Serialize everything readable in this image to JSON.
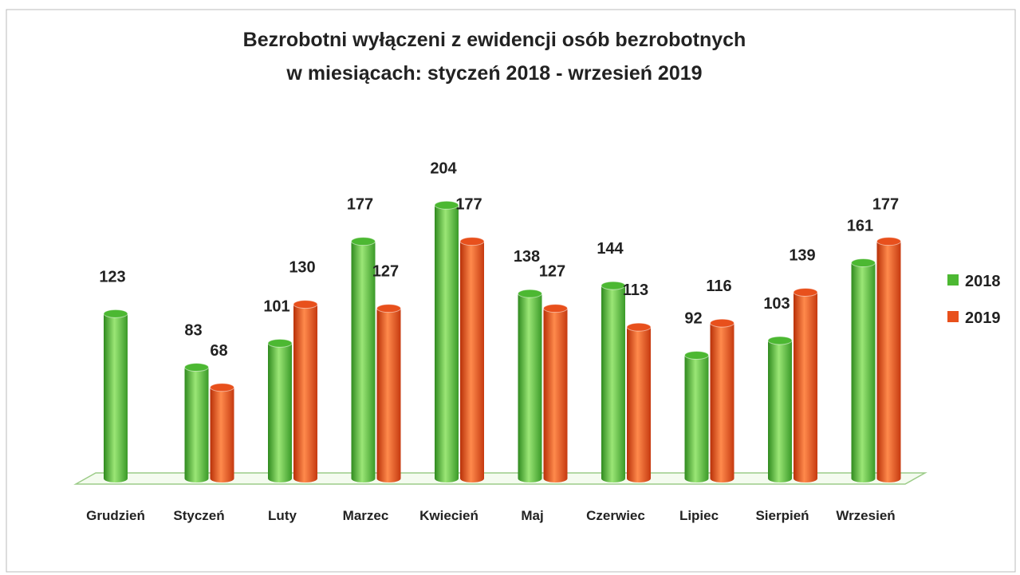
{
  "chart_data": {
    "type": "bar",
    "title": [
      "Bezrobotni wyłączeni z ewidencji osób bezrobotnych",
      "w miesiącach: styczeń 2018 - wrzesień 2019"
    ],
    "categories": [
      "Grudzień",
      "Styczeń",
      "Luty",
      "Marzec",
      "Kwiecień",
      "Maj",
      "Czerwiec",
      "Lipiec",
      "Sierpień",
      "Wrzesień"
    ],
    "series": [
      {
        "name": "2018",
        "color": "#4cb832",
        "values": [
          123,
          83,
          101,
          177,
          204,
          138,
          144,
          92,
          103,
          161
        ]
      },
      {
        "name": "2019",
        "color": "#e8501c",
        "values": [
          null,
          68,
          130,
          127,
          177,
          127,
          113,
          116,
          139,
          177
        ]
      }
    ],
    "ylim": [
      0,
      220
    ],
    "legend": "right"
  }
}
